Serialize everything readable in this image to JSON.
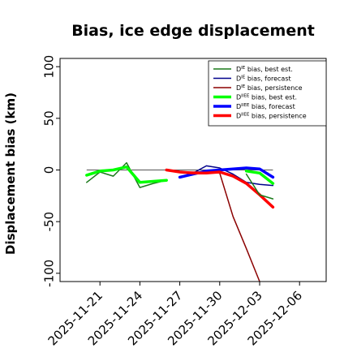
{
  "chart_data": {
    "type": "line",
    "title": "Bias, ice edge displacement",
    "xlabel": "",
    "ylabel": "Displacement bias (km)",
    "xlim": [
      "2025-11-18",
      "2025-12-08"
    ],
    "ylim": [
      -108,
      108
    ],
    "yticks": [
      100,
      50,
      0,
      -50,
      -100
    ],
    "xticks": [
      {
        "label": "2025-11-21",
        "date": "2025-11-21",
        "color": "#000000"
      },
      {
        "label": "2025-11-24",
        "date": "2025-11-24",
        "color": "#000000"
      },
      {
        "label": "2025-11-27",
        "date": "2025-11-27",
        "color": "#228B22"
      },
      {
        "label": "2025-11-30",
        "date": "2025-11-30",
        "color": "#000000"
      },
      {
        "label": "2025-12-03",
        "date": "2025-12-03",
        "color": "#000000"
      },
      {
        "label": "2025-12-06",
        "date": "2025-12-06",
        "color": "#000000"
      }
    ],
    "grid": false,
    "legend_position": "top-right",
    "reference_line": 0,
    "series": [
      {
        "base": "D",
        "sup": "IE",
        "suffix": " bias, best est.",
        "color": "#1a7a1a",
        "width": 1.5,
        "x": [
          "2025-11-20",
          "2025-11-21",
          "2025-11-22",
          "2025-11-23",
          "2025-11-24",
          "2025-11-25",
          "2025-11-26"
        ],
        "y": [
          -12,
          -2,
          -6,
          7,
          -17,
          -13,
          -10
        ]
      },
      {
        "base": "D",
        "sup": "IE",
        "suffix": " bias, forecast",
        "color": "#00008b",
        "width": 1.5,
        "x": [
          "2025-11-26",
          "2025-11-27",
          "2025-11-28",
          "2025-11-29",
          "2025-11-30",
          "2025-12-01",
          "2025-12-02",
          "2025-12-03",
          "2025-12-04"
        ],
        "y": [
          0,
          -2,
          -3,
          4,
          2,
          -4,
          -12,
          -14,
          -15
        ]
      },
      {
        "base": "D",
        "sup": "IE",
        "suffix": " bias, persistence",
        "color": "#8b0000",
        "width": 1.5,
        "x": [
          "2025-11-26",
          "2025-11-27",
          "2025-11-28",
          "2025-11-29",
          "2025-11-30",
          "2025-12-01",
          "2025-12-02",
          "2025-12-03"
        ],
        "y": [
          0,
          -2,
          -2,
          -2,
          -3,
          -45,
          -76,
          -108
        ]
      },
      {
        "base": "D",
        "sup": "IIEE",
        "suffix": " bias, best est.",
        "color": "#00ff00",
        "width": 3.5,
        "x": [
          "2025-11-20",
          "2025-11-21",
          "2025-11-22",
          "2025-11-23",
          "2025-11-24",
          "2025-11-25",
          "2025-11-26"
        ],
        "y": [
          -5,
          -1,
          0,
          3,
          -12,
          -11,
          -10
        ]
      },
      {
        "base": "D",
        "sup": "IIEE",
        "suffix": " bias, forecast",
        "color": "#0000ff",
        "width": 3.5,
        "x": [
          "2025-11-27",
          "2025-11-28",
          "2025-11-29",
          "2025-11-30",
          "2025-12-01",
          "2025-12-02",
          "2025-12-03",
          "2025-12-04"
        ],
        "y": [
          -7,
          -4,
          -1,
          0,
          1,
          2,
          1,
          -7
        ]
      },
      {
        "base": "D",
        "sup": "IIEE",
        "suffix": " bias, persistence",
        "color": "#ff0000",
        "width": 3.5,
        "x": [
          "2025-11-26",
          "2025-11-27",
          "2025-11-28",
          "2025-11-29",
          "2025-11-30",
          "2025-12-01",
          "2025-12-02",
          "2025-12-03",
          "2025-12-04"
        ],
        "y": [
          0,
          -2,
          -3,
          -3,
          -2,
          -6,
          -13,
          -24,
          -36
        ]
      }
    ],
    "extra_series": [
      {
        "color": "#1a7a1a",
        "width": 1.5,
        "x": [
          "2025-12-02",
          "2025-12-03",
          "2025-12-04"
        ],
        "y": [
          -4,
          -24,
          -28
        ]
      },
      {
        "color": "#00ff00",
        "width": 3.5,
        "x": [
          "2025-12-02",
          "2025-12-03",
          "2025-12-04"
        ],
        "y": [
          -1,
          -3,
          -13
        ]
      }
    ]
  }
}
